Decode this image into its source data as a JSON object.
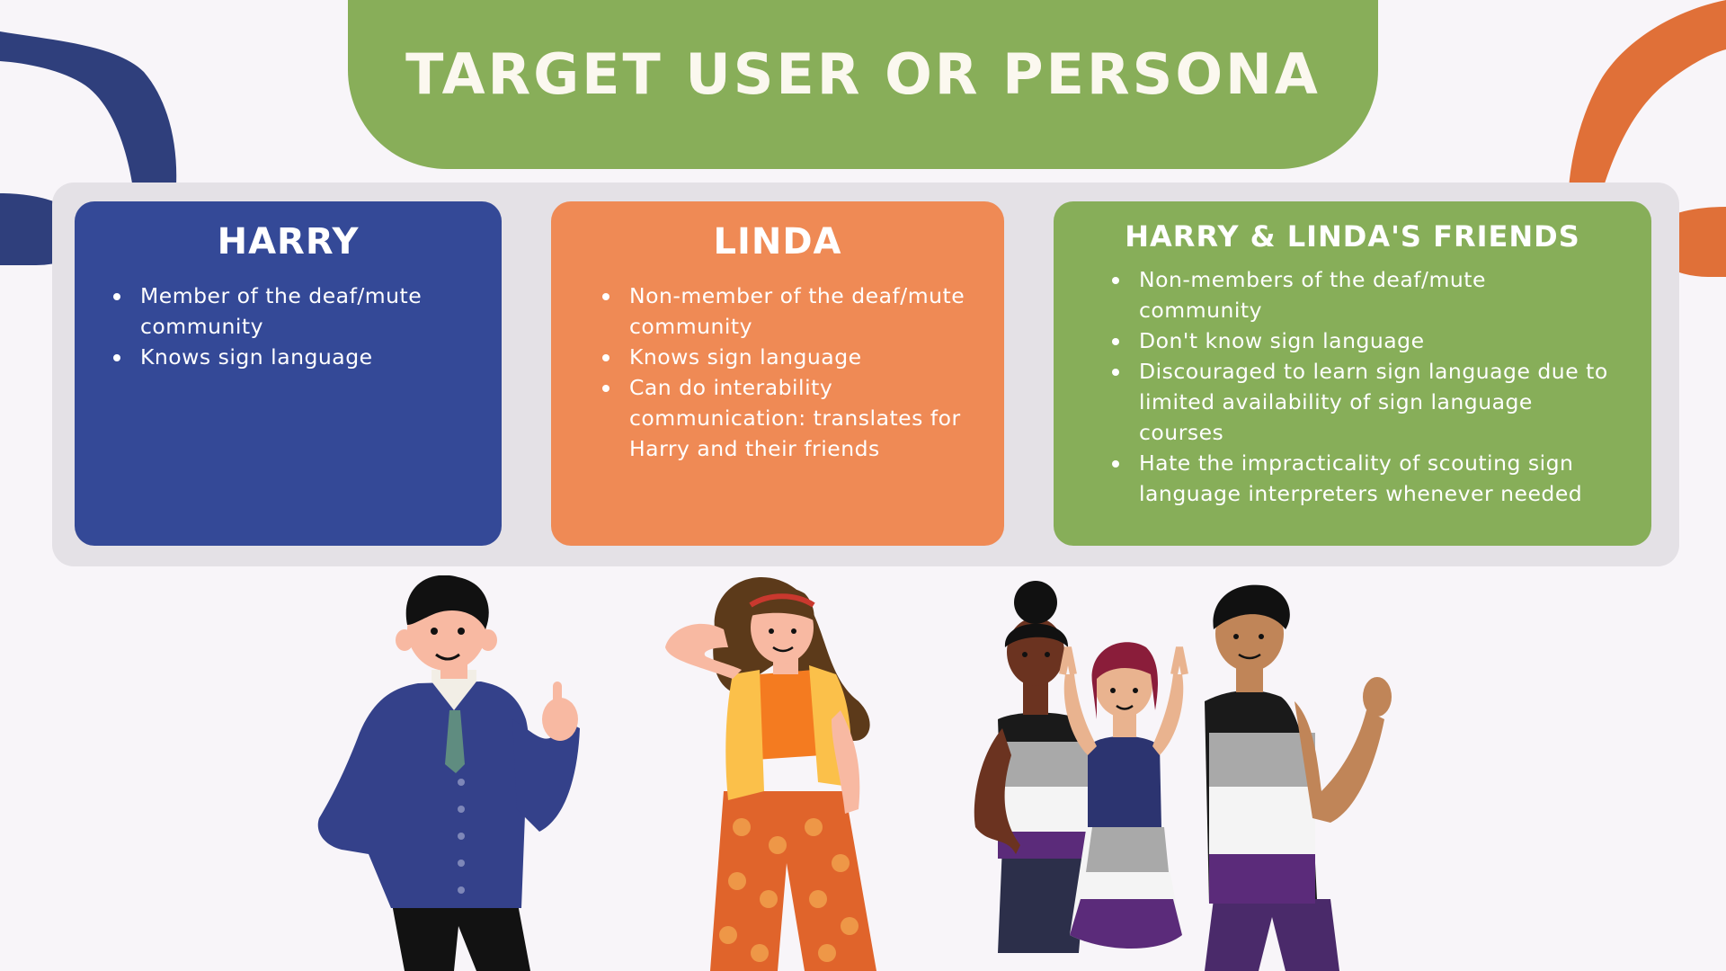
{
  "title": "TARGET USER OR PERSONA",
  "colors": {
    "background": "#f8f5f9",
    "green": "#88ae59",
    "blue": "#344997",
    "orange": "#ef8a55",
    "navy_shape": "#2f3f7c",
    "orange_shape": "#e07038"
  },
  "personas": [
    {
      "name": "HARRY",
      "bullets": [
        "Member of the deaf/mute community",
        "Knows sign language"
      ]
    },
    {
      "name": "LINDA",
      "bullets": [
        "Non-member of the deaf/mute community",
        "Knows sign language",
        "Can do interability communication: translates  for Harry and their friends"
      ]
    },
    {
      "name": "HARRY & LINDA'S FRIENDS",
      "bullets": [
        "Non-members of the deaf/mute community",
        "Don't know sign language",
        "Discouraged to learn sign language due to limited availability of sign language courses",
        "Hate the impracticality of scouting sign language interpreters whenever needed"
      ]
    }
  ],
  "illustrations": [
    "harry-illustration",
    "linda-illustration",
    "friends-illustration"
  ]
}
